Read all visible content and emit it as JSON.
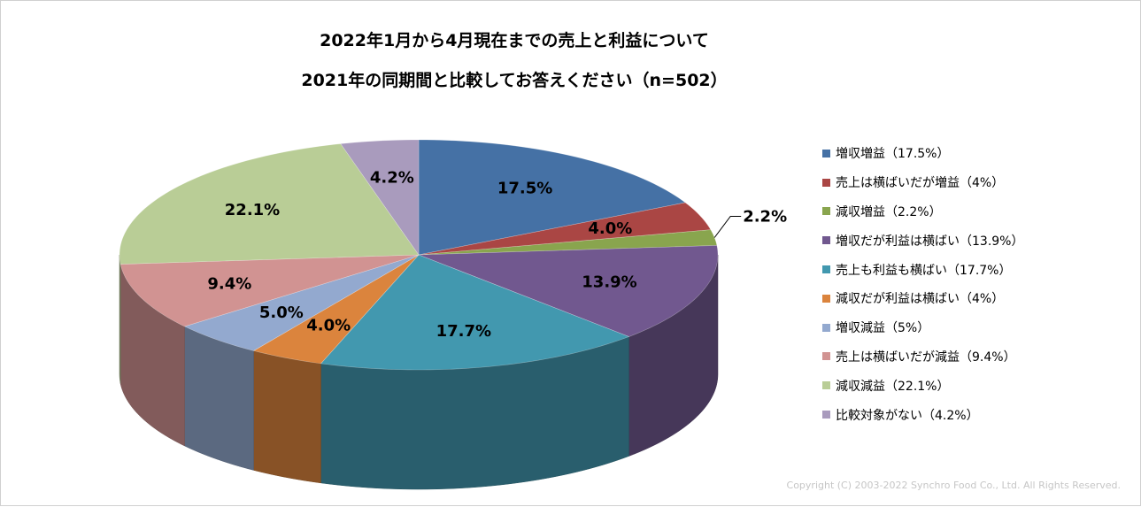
{
  "chart_data": {
    "type": "pie",
    "title_line1": "2022年1月から4月現在までの売上と利益について",
    "title_line2": "2021年の同期間と比較してお答えください（n=502）",
    "slices": [
      {
        "legend": "増収増益（17.5%）",
        "label": "17.5%",
        "value": 17.5,
        "color": "#4571A5"
      },
      {
        "legend": "売上は横ばいだが増益（4%）",
        "label": "4.0%",
        "value": 4.0,
        "color": "#AA4644"
      },
      {
        "legend": "減収増益（2.2%）",
        "label": "2.2%",
        "value": 2.2,
        "color": "#89A54E"
      },
      {
        "legend": "増収だが利益は横ばい（13.9%）",
        "label": "13.9%",
        "value": 13.9,
        "color": "#71588F"
      },
      {
        "legend": "売上も利益も横ばい（17.7%）",
        "label": "17.7%",
        "value": 17.7,
        "color": "#4298AF"
      },
      {
        "legend": "減収だが利益は横ばい（4%）",
        "label": "4.0%",
        "value": 4.0,
        "color": "#DB843D"
      },
      {
        "legend": "増収減益（5%）",
        "label": "5.0%",
        "value": 5.0,
        "color": "#93A9CF"
      },
      {
        "legend": "売上は横ばいだが減益（9.4%）",
        "label": "9.4%",
        "value": 9.4,
        "color": "#D19392"
      },
      {
        "legend": "減収減益（22.1%）",
        "label": "22.1%",
        "value": 22.1,
        "color": "#B9CD96"
      },
      {
        "legend": "比較対象がない（4.2%）",
        "label": "4.2%",
        "value": 4.2,
        "color": "#A99BBD"
      }
    ],
    "legend_position": "right"
  },
  "copyright": "Copyright (C) 2003-2022   Synchro Food Co., Ltd. All Rights Reserved."
}
